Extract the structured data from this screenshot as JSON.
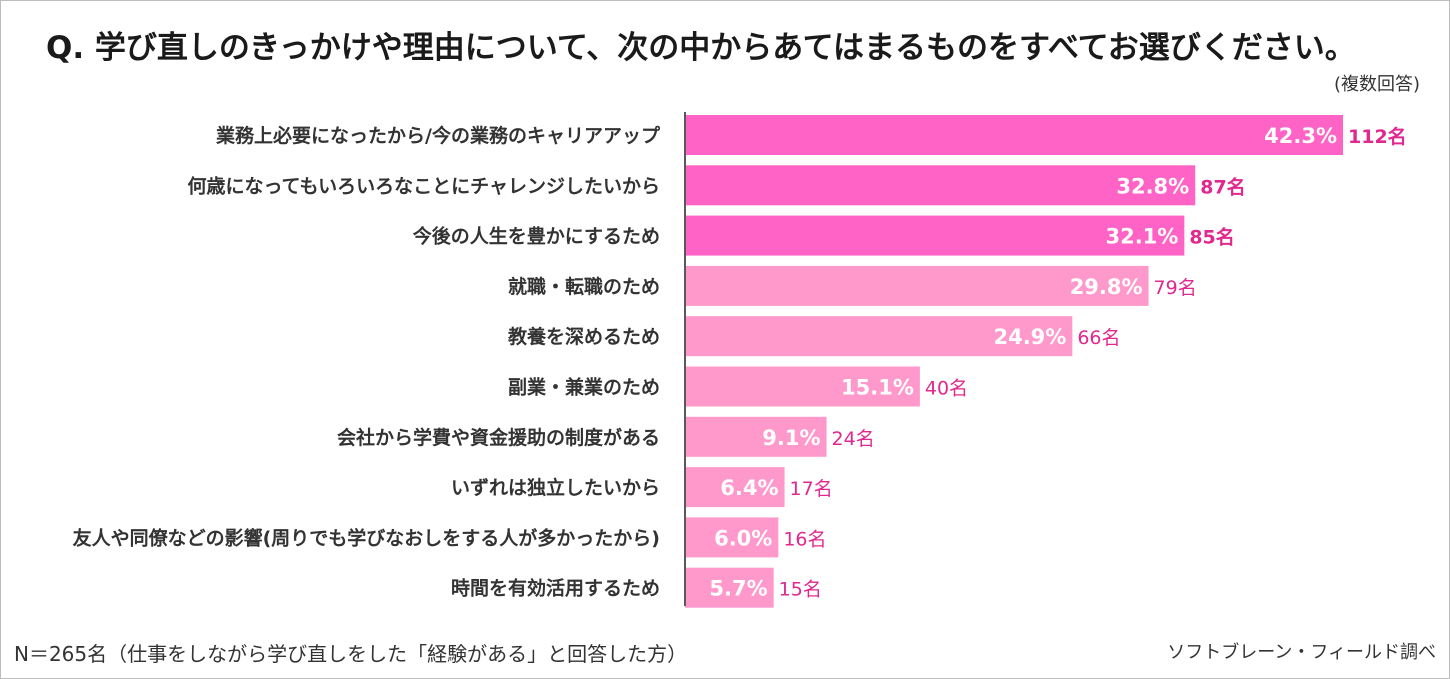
{
  "header": {
    "title": "Q.  学び直しのきっかけや理由について、次の中からあてはまるものをすべてお選びください。",
    "note": "(複数回答)"
  },
  "footer": {
    "base_note": "N＝265名（仕事をしながら学び直しをした「経験がある」と回答した方）",
    "source": "ソフトブレーン・フィールド調べ"
  },
  "colors": {
    "top_bar": "#ff63c6",
    "other_bar": "#ff99cc",
    "count_text": "#e0288f",
    "value_text": "#ffffff",
    "axis": "#595959"
  },
  "chart_data": {
    "type": "bar",
    "orientation": "horizontal",
    "categories": [
      "業務上必要になったから/今の業務のキャリアアップ",
      "何歳になってもいろいろなことにチャレンジしたいから",
      "今後の人生を豊かにするため",
      "就職・転職のため",
      "教養を深めるため",
      "副業・兼業のため",
      "会社から学費や資金援助の制度がある",
      "いずれは独立したいから",
      "友人や同僚などの影響(周りでも学びなおしをする人が多かったから)",
      "時間を有効活用するため"
    ],
    "values": [
      42.3,
      32.8,
      32.1,
      29.8,
      24.9,
      15.1,
      9.1,
      6.4,
      6.0,
      5.7
    ],
    "value_labels": [
      "42.3%",
      "32.8%",
      "32.1%",
      "29.8%",
      "24.9%",
      "15.1%",
      "9.1%",
      "6.4%",
      "6.0%",
      "5.7%"
    ],
    "counts": [
      "112名",
      "87名",
      "85名",
      "79名",
      "66名",
      "40名",
      "24名",
      "17名",
      "16名",
      "15名"
    ],
    "highlighted_top": 3,
    "xlim": [
      0,
      42.3
    ],
    "grid": false,
    "legend": "none"
  }
}
